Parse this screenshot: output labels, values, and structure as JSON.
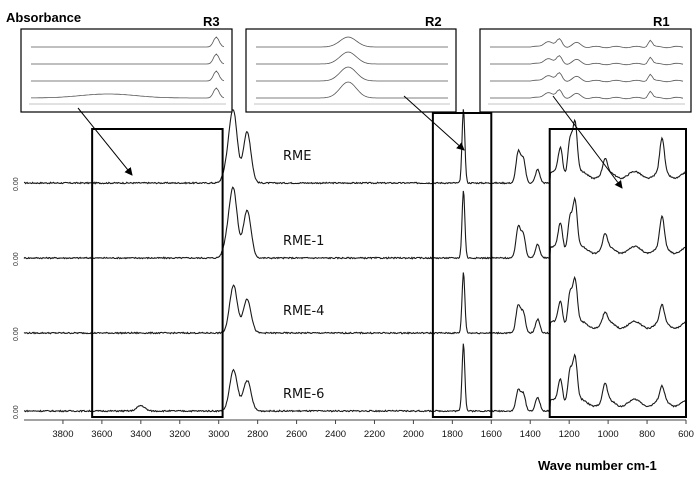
{
  "chart_data": {
    "type": "line",
    "ylabel": "Absorbance",
    "xlabel": "Wave number cm-1",
    "x_ticks": [
      3800,
      3600,
      3400,
      3200,
      3000,
      2800,
      2600,
      2400,
      2200,
      2000,
      1800,
      1600,
      1400,
      1200,
      1000,
      800,
      600
    ],
    "xlim": [
      4000,
      600
    ],
    "x_reversed": true,
    "y_tick_label": "0.00",
    "series": [
      {
        "name": "RME",
        "peaks": [
          [
            2954,
            0.25
          ],
          [
            2924,
            1.0
          ],
          [
            2854,
            0.75
          ],
          [
            1743,
            1.1
          ],
          [
            1462,
            0.45
          ],
          [
            1436,
            0.35
          ],
          [
            1362,
            0.2
          ],
          [
            1245,
            0.4
          ],
          [
            1196,
            0.55
          ],
          [
            1170,
            0.75
          ],
          [
            1016,
            0.2
          ],
          [
            723,
            0.5
          ]
        ]
      },
      {
        "name": "RME-1",
        "peaks": [
          [
            2954,
            0.25
          ],
          [
            2924,
            0.95
          ],
          [
            2854,
            0.7
          ],
          [
            1743,
            1.0
          ],
          [
            1462,
            0.45
          ],
          [
            1436,
            0.35
          ],
          [
            1362,
            0.2
          ],
          [
            1245,
            0.4
          ],
          [
            1196,
            0.5
          ],
          [
            1170,
            0.7
          ],
          [
            1016,
            0.2
          ],
          [
            723,
            0.45
          ]
        ]
      },
      {
        "name": "RME-4",
        "peaks": [
          [
            2924,
            0.7
          ],
          [
            2854,
            0.5
          ],
          [
            1743,
            0.9
          ],
          [
            1462,
            0.4
          ],
          [
            1436,
            0.3
          ],
          [
            1362,
            0.2
          ],
          [
            1245,
            0.35
          ],
          [
            1196,
            0.5
          ],
          [
            1170,
            0.65
          ],
          [
            1016,
            0.15
          ],
          [
            723,
            0.25
          ]
        ]
      },
      {
        "name": "RME-6",
        "peaks": [
          [
            3400,
            0.08
          ],
          [
            2924,
            0.6
          ],
          [
            2854,
            0.45
          ],
          [
            1743,
            1.0
          ],
          [
            1462,
            0.3
          ],
          [
            1436,
            0.25
          ],
          [
            1362,
            0.2
          ],
          [
            1245,
            0.35
          ],
          [
            1196,
            0.5
          ],
          [
            1170,
            0.65
          ],
          [
            1016,
            0.25
          ],
          [
            723,
            0.2
          ]
        ]
      }
    ],
    "regions": [
      {
        "name": "R1",
        "range": [
          1300,
          600
        ]
      },
      {
        "name": "R2",
        "range": [
          1900,
          1600
        ]
      },
      {
        "name": "R3",
        "range": [
          3650,
          2980
        ]
      }
    ],
    "insets": [
      {
        "label": "R3",
        "traces": 4
      },
      {
        "label": "R2",
        "traces": 4
      },
      {
        "label": "R1",
        "traces": 4
      }
    ]
  }
}
